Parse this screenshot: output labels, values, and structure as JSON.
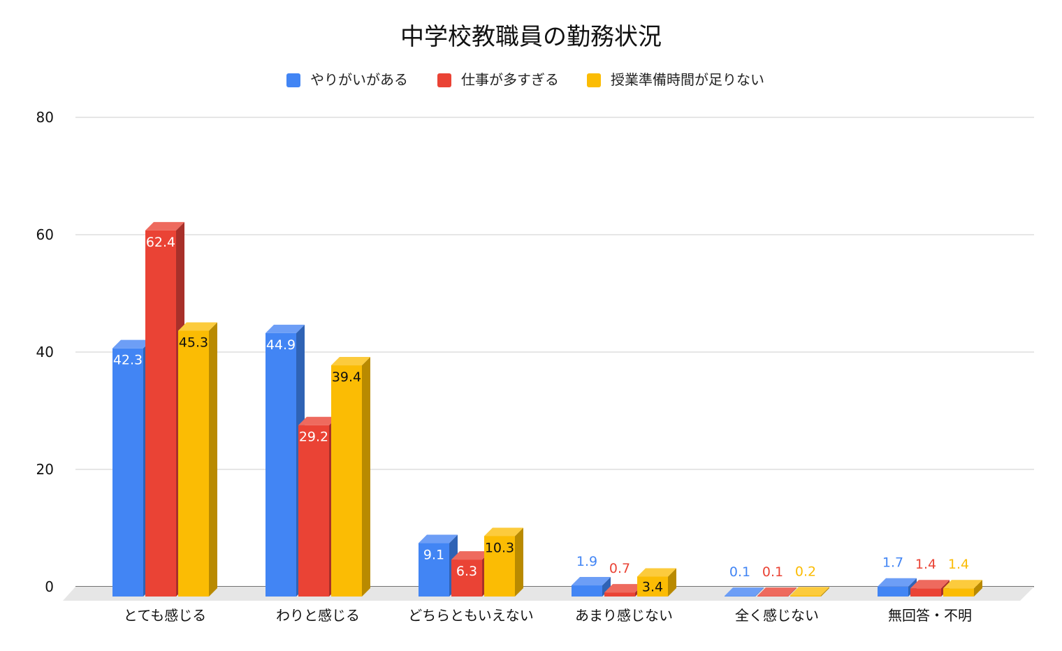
{
  "chart_data": {
    "type": "bar",
    "title": "中学校教職員の勤務状況",
    "categories": [
      "とても感じる",
      "わりと感じる",
      "どちらともいえない",
      "あまり感じない",
      "全く感じない",
      "無回答・不明"
    ],
    "series": [
      {
        "name": "やりがいがある",
        "values": [
          42.3,
          44.9,
          9.1,
          1.9,
          0.1,
          1.7
        ]
      },
      {
        "name": "仕事が多すぎる",
        "values": [
          62.4,
          29.2,
          6.3,
          0.7,
          0.1,
          1.4
        ]
      },
      {
        "name": "授業準備時間が足りない",
        "values": [
          45.3,
          39.4,
          10.3,
          3.4,
          0.2,
          1.4
        ]
      }
    ],
    "value_labels": [
      [
        "42.3",
        "44.9",
        "9.1",
        "1.9",
        "0.1",
        "1.7"
      ],
      [
        "62.4",
        "29.2",
        "6.3",
        "0.7",
        "0.1",
        "1.4"
      ],
      [
        "45.3",
        "39.4",
        "10.3",
        "3.4",
        "0.2",
        "1.4"
      ]
    ],
    "y_ticks": [
      "0",
      "20",
      "40",
      "60",
      "80"
    ],
    "ylim": [
      0,
      80
    ],
    "xlabel": "",
    "ylabel": "",
    "grid": true,
    "legend_position": "top",
    "style_3d": true,
    "colors": [
      "#4285f4",
      "#ea4335",
      "#fbbc04"
    ],
    "side_colors": [
      "#2f63b5",
      "#a8302a",
      "#b98a00"
    ],
    "top_colors": [
      "#6d9ef6",
      "#ee6a5e",
      "#fccb3d"
    ]
  }
}
